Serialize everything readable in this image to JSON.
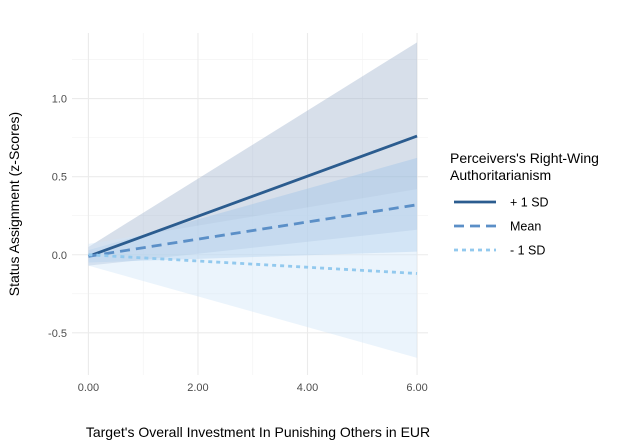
{
  "chart_data": {
    "type": "line",
    "title": "",
    "xlabel": "Target's Overall Investment In Punishing Others in EUR",
    "ylabel": "Status Assignment (z-Scores)",
    "xlim": [
      -0.3,
      6.2
    ],
    "ylim": [
      -0.77,
      1.42
    ],
    "x_ticks": [
      0,
      2,
      4,
      6
    ],
    "x_tick_labels": [
      "0.00",
      "2.00",
      "4.00",
      "6.00"
    ],
    "y_ticks": [
      -0.5,
      0,
      0.5,
      1.0
    ],
    "y_tick_labels": [
      "-0.5",
      "0.0",
      "0.5",
      "1.0"
    ],
    "grid": true,
    "legend": {
      "title_lines": [
        "Perceivers's Right-Wing",
        "Authoritarianism"
      ],
      "placement": "right"
    },
    "series": [
      {
        "name": "+ 1 SD",
        "x": [
          0,
          6
        ],
        "y": [
          -0.01,
          0.76
        ],
        "ci_lower": [
          -0.07,
          0.16
        ],
        "ci_upper": [
          0.05,
          1.36
        ],
        "color": "#2b5c8f",
        "band_color": "#9fb3cc",
        "dash": "solid"
      },
      {
        "name": "Mean",
        "x": [
          0,
          6
        ],
        "y": [
          -0.01,
          0.32
        ],
        "ci_lower": [
          -0.05,
          0.02
        ],
        "ci_upper": [
          0.03,
          0.62
        ],
        "color": "#5b8fc7",
        "band_color": "#9ec3e6",
        "dash": "dashed"
      },
      {
        "name": "- 1 SD",
        "x": [
          0,
          6
        ],
        "y": [
          0.0,
          -0.12
        ],
        "ci_lower": [
          -0.07,
          -0.66
        ],
        "ci_upper": [
          0.07,
          0.42
        ],
        "color": "#92c9ee",
        "band_color": "#cfe5f8",
        "dash": "dotted"
      }
    ]
  }
}
